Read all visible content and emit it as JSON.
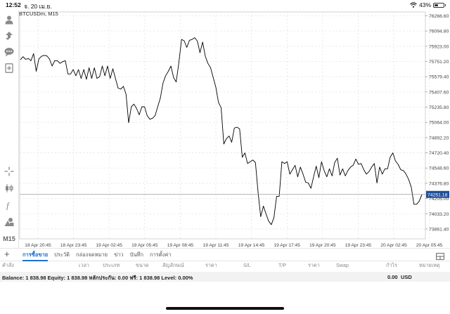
{
  "status": {
    "time": "12:52",
    "date": "จ. 20 เม.ย.",
    "battery": "43%",
    "battery_level": 0.43
  },
  "chart": {
    "label": "BTCUSDm, M15",
    "current_price": "74251.18",
    "line_color": "#000000",
    "price_tag_color": "#1e4f9a",
    "grid": true
  },
  "chart_data": {
    "type": "line",
    "title": "BTCUSDm, M15",
    "xlabel": "",
    "ylabel": "",
    "ylim": [
      73750,
      76310
    ],
    "x_ticks": [
      "18 Apr 20:45",
      "18 Apr 23:45",
      "19 Apr 02:45",
      "19 Apr 05:45",
      "19 Apr 08:45",
      "19 Apr 11:45",
      "19 Apr 14:45",
      "19 Apr 17:45",
      "19 Apr 20:45",
      "19 Apr 23:45",
      "20 Apr 02:45",
      "20 Apr 05:45"
    ],
    "y_ticks": [
      "76266.60",
      "76094.80",
      "75923.00",
      "75751.20",
      "75579.40",
      "75407.60",
      "75235.80",
      "75064.00",
      "74892.20",
      "74720.40",
      "74548.60",
      "74376.80",
      "74205.00",
      "74033.20",
      "73861.40"
    ],
    "current_value": 74251.18,
    "series": [
      {
        "values": [
          75770,
          75805,
          75775,
          75785,
          75760,
          75840,
          75640,
          75780,
          75810,
          75820,
          75815,
          75780,
          75700,
          75760,
          75760,
          75730,
          75750,
          75760,
          75610,
          75610,
          75660,
          75590,
          75660,
          75560,
          75660,
          75550,
          75680,
          75560,
          75680,
          75560,
          75580,
          75700,
          75590,
          75700,
          75560,
          75670,
          75560,
          75450,
          75440,
          75470,
          75380,
          75060,
          75240,
          75270,
          75220,
          75150,
          75240,
          75240,
          75140,
          75100,
          75110,
          75140,
          75240,
          75340,
          75510,
          75590,
          75640,
          75700,
          75570,
          75520,
          75740,
          76000,
          75985,
          75910,
          75990,
          76000,
          76020,
          75980,
          75850,
          75970,
          75810,
          75730,
          75680,
          75570,
          75460,
          75290,
          75230,
          74820,
          74880,
          74910,
          74840,
          75000,
          75010,
          74990,
          74670,
          74720,
          74600,
          74620,
          74640,
          74610,
          74270,
          74000,
          74120,
          74030,
          73950,
          73910,
          73990,
          74230,
          74230,
          74620,
          74600,
          74620,
          74480,
          74530,
          74580,
          74450,
          74560,
          74480,
          74390,
          74380,
          74320,
          74450,
          74570,
          74440,
          74620,
          74520,
          74450,
          74540,
          74460,
          74610,
          74660,
          74470,
          74540,
          74460,
          74520,
          74560,
          74580,
          74650,
          74590,
          74600,
          74530,
          74480,
          74510,
          74560,
          74600,
          74380,
          74560,
          74480,
          74540,
          74540,
          74670,
          74720,
          74630,
          74590,
          74530,
          74520,
          74480,
          74420,
          74330,
          74140,
          74140,
          74175,
          74251
        ]
      }
    ]
  },
  "toolbar": {
    "timeframe": "M15",
    "icons": [
      "account-icon",
      "trade-icon",
      "chat-icon",
      "new-order-icon",
      "crosshair-icon",
      "candles-icon",
      "indicators-icon",
      "objects-icon"
    ]
  },
  "tabs": [
    "การซื้อขาย",
    "ประวัติ",
    "กล่องจดหมาย",
    "ข่าว",
    "บันทึก",
    "การตั้งค่า"
  ],
  "active_tab": 0,
  "table": {
    "headers": [
      "คำสั่ง",
      "เวลา",
      "ประเภท",
      "ขนาด",
      "สัญลักษณ์",
      "ราคา",
      "S/L",
      "T/P",
      "ราคา",
      "Swap",
      "กำไร",
      "หมายเหตุ"
    ]
  },
  "balance": {
    "text": "Balance: 1 838.98  Equity: 1 838.98  หลักประกัน: 0.00  ฟรี: 1 838.98  Level: 0.00%",
    "profit": "0.00",
    "currency": "USD"
  }
}
